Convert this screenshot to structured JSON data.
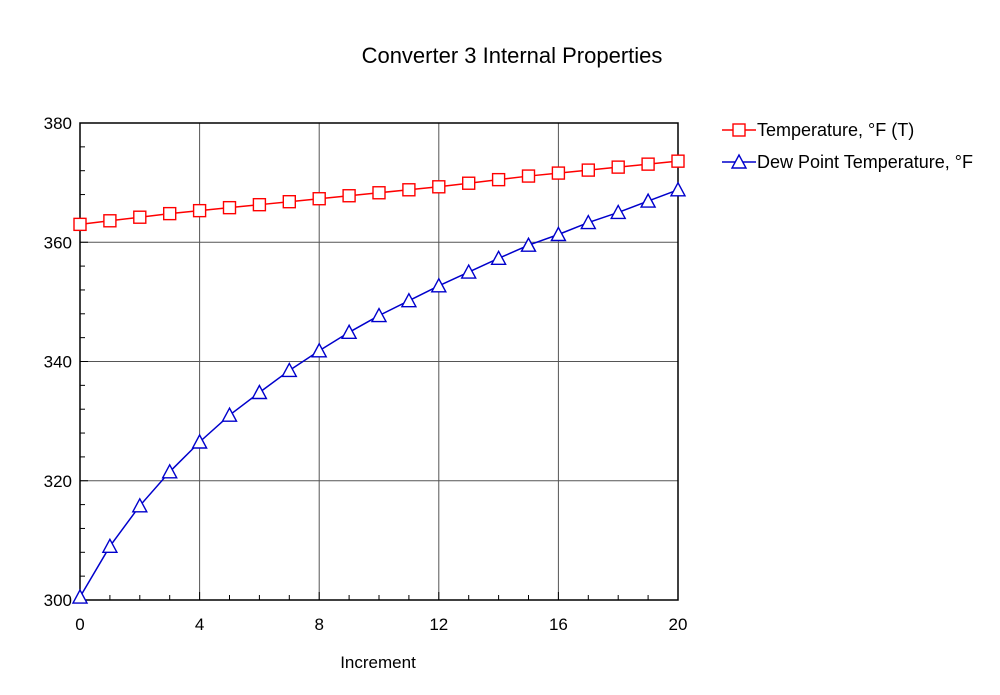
{
  "chart_data": {
    "type": "line",
    "title": "Converter 3 Internal Properties",
    "xlabel": "Increment",
    "ylabel": "",
    "xlim": [
      0,
      20
    ],
    "ylim": [
      300,
      380
    ],
    "xticks": [
      0,
      4,
      8,
      12,
      16,
      20
    ],
    "yticks": [
      300,
      320,
      340,
      360,
      380
    ],
    "grid": true,
    "legend_position": "right",
    "x": [
      0,
      1,
      2,
      3,
      4,
      5,
      6,
      7,
      8,
      9,
      10,
      11,
      12,
      13,
      14,
      15,
      16,
      17,
      18,
      19,
      20
    ],
    "series": [
      {
        "name": "Temperature, °F (T)",
        "color": "#ff0000",
        "marker": "square",
        "values": [
          363.0,
          363.6,
          364.2,
          364.8,
          365.3,
          365.8,
          366.3,
          366.8,
          367.3,
          367.8,
          368.3,
          368.8,
          369.3,
          369.9,
          370.5,
          371.1,
          371.6,
          372.1,
          372.6,
          373.1,
          373.6
        ]
      },
      {
        "name": "Dew Point Temperature, °F",
        "color": "#0000cc",
        "marker": "triangle",
        "values": [
          300.5,
          309.0,
          315.8,
          321.5,
          326.5,
          331.0,
          334.8,
          338.5,
          341.8,
          344.9,
          347.7,
          350.2,
          352.7,
          355.0,
          357.3,
          359.5,
          361.3,
          363.3,
          365.0,
          366.9,
          368.8
        ]
      }
    ]
  }
}
